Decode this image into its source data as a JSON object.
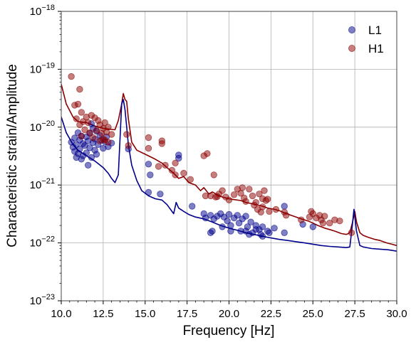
{
  "chart_data": {
    "type": "scatter",
    "xlabel": "Frequency [Hz]",
    "ylabel": "Characteristic strain/Amplitude",
    "xlim": [
      10.0,
      30.0
    ],
    "ylim": [
      1e-23,
      1e-18
    ],
    "yscale": "log",
    "grid": true,
    "legend_position": "top-right",
    "x_ticks": [
      10.0,
      12.5,
      15.0,
      17.5,
      20.0,
      22.5,
      25.0,
      27.5,
      30.0
    ],
    "x_tick_labels": [
      "10.0",
      "12.5",
      "15.0",
      "17.5",
      "20.0",
      "22.5",
      "25.0",
      "27.5",
      "30.0"
    ],
    "y_ticks": [
      1e-23,
      1e-22,
      1e-21,
      1e-20,
      1e-19,
      1e-18
    ],
    "y_tick_labels": [
      {
        "base": "10",
        "exp": "−23"
      },
      {
        "base": "10",
        "exp": "−22"
      },
      {
        "base": "10",
        "exp": "−21"
      },
      {
        "base": "10",
        "exp": "−20"
      },
      {
        "base": "10",
        "exp": "−19"
      },
      {
        "base": "10",
        "exp": "−18"
      }
    ],
    "series": [
      {
        "name": "L1",
        "kind": "points",
        "color": "#00008b",
        "points": [
          [
            10.6,
            5.5e-21
          ],
          [
            10.7,
            4.5e-21
          ],
          [
            10.8,
            3.8e-21
          ],
          [
            10.8,
            6.5e-21
          ],
          [
            10.9,
            3e-21
          ],
          [
            10.9,
            5e-21
          ],
          [
            11.0,
            8e-21
          ],
          [
            11.0,
            3.5e-21
          ],
          [
            11.1,
            4.2e-21
          ],
          [
            11.1,
            6e-21
          ],
          [
            11.2,
            2.8e-21
          ],
          [
            11.2,
            7e-21
          ],
          [
            11.3,
            5.2e-21
          ],
          [
            11.3,
            3.2e-21
          ],
          [
            11.4,
            4.8e-21
          ],
          [
            11.5,
            6.8e-21
          ],
          [
            11.5,
            3.6e-21
          ],
          [
            11.6,
            5.8e-21
          ],
          [
            11.6,
            2.2e-21
          ],
          [
            11.7,
            7.8e-21
          ],
          [
            11.7,
            4.4e-21
          ],
          [
            11.8,
            1.15e-20
          ],
          [
            11.8,
            3e-21
          ],
          [
            11.9,
            5.4e-21
          ],
          [
            11.9,
            9.5e-21
          ],
          [
            12.0,
            4e-21
          ],
          [
            12.0,
            6.2e-21
          ],
          [
            12.1,
            3.4e-21
          ],
          [
            12.1,
            8.5e-21
          ],
          [
            12.2,
            5e-21
          ],
          [
            12.3,
            7.2e-21
          ],
          [
            12.4,
            6e-21
          ],
          [
            12.5,
            4.3e-21
          ],
          [
            12.6,
            5.6e-21
          ],
          [
            12.7,
            6.8e-21
          ],
          [
            12.8,
            4.6e-21
          ],
          [
            13.0,
            5.3e-21
          ],
          [
            14.0,
            4.2e-21
          ],
          [
            15.2,
            2.3e-21
          ],
          [
            15.3,
            1.5e-21
          ],
          [
            15.2,
            7.5e-22
          ],
          [
            15.9,
            7e-22
          ],
          [
            17.0,
            3.3e-21
          ],
          [
            17.0,
            2.9e-21
          ],
          [
            17.8,
            4.3e-22
          ],
          [
            18.5,
            3.2e-22
          ],
          [
            18.6,
            2.7e-22
          ],
          [
            18.9,
            3e-22
          ],
          [
            19.1,
            2.6e-22
          ],
          [
            19.3,
            2.9e-22
          ],
          [
            19.5,
            3.2e-22
          ],
          [
            19.7,
            2.8e-22
          ],
          [
            19.9,
            2.4e-22
          ],
          [
            20.0,
            3.1e-22
          ],
          [
            20.1,
            2e-22
          ],
          [
            20.3,
            2.7e-22
          ],
          [
            20.5,
            3e-22
          ],
          [
            20.6,
            2.2e-22
          ],
          [
            20.8,
            2.6e-22
          ],
          [
            21.0,
            2.9e-22
          ],
          [
            21.1,
            1.9e-22
          ],
          [
            21.3,
            2.3e-22
          ],
          [
            21.4,
            1.5e-22
          ],
          [
            21.6,
            2e-22
          ],
          [
            21.8,
            1.7e-22
          ],
          [
            21.9,
            1.4e-22
          ],
          [
            22.0,
            1.9e-22
          ],
          [
            22.3,
            1.6e-22
          ],
          [
            22.7,
            1.8e-22
          ],
          [
            23.3,
            4.3e-22
          ],
          [
            23.3,
            1.5e-22
          ],
          [
            24.4,
            2.1e-22
          ],
          [
            25.0,
            1.9e-22
          ],
          [
            20.1,
            1.6e-22
          ],
          [
            21.0,
            1.6e-22
          ],
          [
            22.0,
            1.3e-22
          ],
          [
            22.4,
            1.5e-22
          ],
          [
            18.9,
            1.5e-22
          ],
          [
            21.2,
            1.4e-22
          ],
          [
            19.6,
            1.9e-22
          ],
          [
            20.7,
            1.6e-22
          ],
          [
            21.6,
            1.7e-22
          ],
          [
            19.0,
            1.6e-22
          ]
        ]
      },
      {
        "name": "H1",
        "kind": "points",
        "color": "#8b0000",
        "points": [
          [
            10.6,
            7.5e-20
          ],
          [
            11.1,
            4.5e-20
          ],
          [
            10.8,
            2.4e-20
          ],
          [
            11.0,
            2.5e-20
          ],
          [
            11.2,
            1.8e-20
          ],
          [
            10.9,
            1.4e-20
          ],
          [
            11.1,
            1.1e-20
          ],
          [
            11.3,
            1.25e-20
          ],
          [
            11.5,
            1.5e-20
          ],
          [
            11.6,
            1.2e-20
          ],
          [
            11.8,
            1.6e-20
          ],
          [
            12.0,
            1.45e-20
          ],
          [
            12.2,
            1.3e-20
          ],
          [
            12.3,
            1.1e-20
          ],
          [
            12.5,
            9.5e-21
          ],
          [
            12.6,
            1.2e-20
          ],
          [
            12.8,
            1e-20
          ],
          [
            11.4,
            9e-21
          ],
          [
            11.7,
            8e-21
          ],
          [
            12.1,
            8.8e-21
          ],
          [
            12.4,
            7.8e-21
          ],
          [
            12.7,
            8.2e-21
          ],
          [
            13.0,
            7.5e-21
          ],
          [
            12.5,
            6.2e-21
          ],
          [
            11.2,
            7e-21
          ],
          [
            11.9,
            6.6e-21
          ],
          [
            12.3,
            5.8e-21
          ],
          [
            12.6,
            6e-21
          ],
          [
            12.8,
            5.5e-21
          ],
          [
            14.0,
            4.8e-21
          ],
          [
            13.9,
            7.5e-21
          ],
          [
            15.2,
            6.6e-21
          ],
          [
            15.2,
            4.3e-21
          ],
          [
            16.0,
            5.8e-21
          ],
          [
            16.0,
            5.2e-21
          ],
          [
            15.8,
            2.1e-21
          ],
          [
            16.2,
            2.2e-21
          ],
          [
            16.6,
            1.8e-21
          ],
          [
            16.8,
            1.5e-21
          ],
          [
            16.8,
            2.4e-21
          ],
          [
            17.3,
            1.6e-21
          ],
          [
            17.7,
            1.25e-21
          ],
          [
            18.5,
            3.2e-21
          ],
          [
            18.7,
            3.5e-21
          ],
          [
            19.1,
            1.5e-21
          ],
          [
            18.6,
            6.5e-22
          ],
          [
            18.9,
            6.5e-22
          ],
          [
            19.2,
            6.2e-22
          ],
          [
            19.4,
            7e-22
          ],
          [
            19.6,
            8e-22
          ],
          [
            19.8,
            6.2e-22
          ],
          [
            20.0,
            5.5e-22
          ],
          [
            20.3,
            6.8e-22
          ],
          [
            20.5,
            8.5e-22
          ],
          [
            20.7,
            7.2e-22
          ],
          [
            20.9,
            6e-22
          ],
          [
            21.0,
            5.2e-22
          ],
          [
            21.2,
            8.5e-22
          ],
          [
            21.4,
            6.5e-22
          ],
          [
            21.6,
            5e-22
          ],
          [
            21.8,
            7e-22
          ],
          [
            22.0,
            5.8e-22
          ],
          [
            22.1,
            8e-22
          ],
          [
            22.2,
            5.4e-22
          ],
          [
            20.8,
            9e-22
          ],
          [
            21.5,
            4.5e-22
          ],
          [
            22.0,
            4.2e-22
          ],
          [
            21.7,
            3.8e-22
          ],
          [
            22.4,
            3.5e-22
          ],
          [
            22.8,
            3.8e-22
          ],
          [
            23.3,
            3.4e-22
          ],
          [
            23.4,
            3e-22
          ],
          [
            24.3,
            2.5e-22
          ],
          [
            24.8,
            2.8e-22
          ],
          [
            24.9,
            3.5e-22
          ],
          [
            25.0,
            3.2e-22
          ],
          [
            25.2,
            2.7e-22
          ],
          [
            25.4,
            3e-22
          ],
          [
            25.5,
            2.5e-22
          ],
          [
            25.7,
            2.9e-22
          ],
          [
            26.0,
            2.2e-22
          ],
          [
            26.3,
            2.5e-22
          ],
          [
            26.6,
            2.4e-22
          ],
          [
            27.3,
            1.5e-22
          ],
          [
            19.3,
            6.3e-22
          ],
          [
            22.3,
            5.7e-22
          ],
          [
            21.9,
            3.4e-22
          ],
          [
            25.6,
            2.2e-22
          ]
        ]
      },
      {
        "name": "",
        "kind": "curve",
        "color": "#8b0000",
        "points": [
          [
            10.0,
            5.5e-20
          ],
          [
            10.3,
            2.5e-20
          ],
          [
            10.7,
            1.5e-20
          ],
          [
            11.0,
            1.25e-20
          ],
          [
            11.5,
            1.2e-20
          ],
          [
            12.0,
            1.05e-20
          ],
          [
            12.5,
            9.5e-21
          ],
          [
            12.9,
            9.2e-21
          ],
          [
            13.2,
            9e-21
          ],
          [
            13.4,
            1.3e-20
          ],
          [
            13.6,
            2.5e-20
          ],
          [
            13.7,
            3.8e-20
          ],
          [
            13.8,
            3e-20
          ],
          [
            13.9,
            2.8e-20
          ],
          [
            14.0,
            1.4e-20
          ],
          [
            14.2,
            5.5e-21
          ],
          [
            14.5,
            4e-21
          ],
          [
            15.0,
            3.4e-21
          ],
          [
            15.5,
            2.9e-21
          ],
          [
            16.0,
            2.4e-21
          ],
          [
            16.3,
            2e-21
          ],
          [
            16.7,
            1.6e-21
          ],
          [
            17.0,
            1.3e-21
          ],
          [
            17.3,
            1.4e-21
          ],
          [
            17.6,
            1.1e-21
          ],
          [
            18.0,
            1e-21
          ],
          [
            18.3,
            8e-22
          ],
          [
            18.5,
            9e-22
          ],
          [
            18.8,
            7e-22
          ],
          [
            19.0,
            7.6e-22
          ],
          [
            19.3,
            6.8e-22
          ],
          [
            19.6,
            6.2e-22
          ],
          [
            20.0,
            5.8e-22
          ],
          [
            20.3,
            5.6e-22
          ],
          [
            20.7,
            5.4e-22
          ],
          [
            21.0,
            5e-22
          ],
          [
            21.3,
            4.8e-22
          ],
          [
            21.7,
            4.5e-22
          ],
          [
            22.0,
            4.3e-22
          ],
          [
            22.3,
            4e-22
          ],
          [
            22.7,
            3.8e-22
          ],
          [
            23.0,
            3.6e-22
          ],
          [
            23.3,
            3.3e-22
          ],
          [
            23.7,
            3e-22
          ],
          [
            24.0,
            2.8e-22
          ],
          [
            24.3,
            2.6e-22
          ],
          [
            24.7,
            2.4e-22
          ],
          [
            25.0,
            2.2e-22
          ],
          [
            25.3,
            2e-22
          ],
          [
            25.7,
            1.8e-22
          ],
          [
            26.0,
            1.7e-22
          ],
          [
            26.3,
            1.6e-22
          ],
          [
            26.7,
            1.45e-22
          ],
          [
            27.0,
            1.4e-22
          ],
          [
            27.2,
            1.5e-22
          ],
          [
            27.35,
            2.2e-22
          ],
          [
            27.5,
            3.5e-22
          ],
          [
            27.6,
            2.3e-22
          ],
          [
            27.8,
            1.5e-22
          ],
          [
            28.0,
            1.35e-22
          ],
          [
            28.3,
            1.25e-22
          ],
          [
            28.7,
            1.15e-22
          ],
          [
            29.0,
            1.1e-22
          ],
          [
            29.4,
            1e-22
          ],
          [
            29.7,
            9.5e-23
          ],
          [
            30.0,
            9e-23
          ]
        ]
      },
      {
        "name": "",
        "kind": "curve",
        "color": "#00008b",
        "points": [
          [
            10.0,
            1.5e-20
          ],
          [
            10.3,
            8e-21
          ],
          [
            10.7,
            5e-21
          ],
          [
            11.0,
            4e-21
          ],
          [
            11.5,
            3.2e-21
          ],
          [
            12.0,
            2.6e-21
          ],
          [
            12.5,
            2e-21
          ],
          [
            12.8,
            1.6e-21
          ],
          [
            13.0,
            1.3e-21
          ],
          [
            13.2,
            1.1e-21
          ],
          [
            13.4,
            1.5e-21
          ],
          [
            13.6,
            2.5e-20
          ],
          [
            13.7,
            3e-20
          ],
          [
            13.8,
            2e-20
          ],
          [
            14.0,
            5e-21
          ],
          [
            14.2,
            2.2e-21
          ],
          [
            14.5,
            1.2e-21
          ],
          [
            14.8,
            8e-22
          ],
          [
            15.2,
            6.5e-22
          ],
          [
            15.6,
            5.8e-22
          ],
          [
            16.0,
            5.5e-22
          ],
          [
            16.3,
            4.6e-22
          ],
          [
            16.7,
            3.2e-22
          ],
          [
            16.85,
            5e-22
          ],
          [
            17.0,
            4e-22
          ],
          [
            17.3,
            3.5e-22
          ],
          [
            17.6,
            3.1e-22
          ],
          [
            18.0,
            2.8e-22
          ],
          [
            18.5,
            2.6e-22
          ],
          [
            19.0,
            2.3e-22
          ],
          [
            19.5,
            2e-22
          ],
          [
            20.0,
            1.8e-22
          ],
          [
            20.5,
            1.65e-22
          ],
          [
            21.0,
            1.5e-22
          ],
          [
            21.5,
            1.4e-22
          ],
          [
            22.0,
            1.3e-22
          ],
          [
            22.5,
            1.22e-22
          ],
          [
            23.0,
            1.15e-22
          ],
          [
            23.5,
            1.1e-22
          ],
          [
            24.0,
            1.05e-22
          ],
          [
            24.5,
            1e-22
          ],
          [
            25.0,
            9.5e-23
          ],
          [
            25.5,
            9e-23
          ],
          [
            26.0,
            8.7e-23
          ],
          [
            26.5,
            8.5e-23
          ],
          [
            27.0,
            8.3e-23
          ],
          [
            27.2,
            8.5e-23
          ],
          [
            27.35,
            2e-22
          ],
          [
            27.45,
            3.8e-22
          ],
          [
            27.6,
            1.6e-22
          ],
          [
            27.8,
            9e-23
          ],
          [
            28.0,
            8.5e-23
          ],
          [
            28.5,
            8e-23
          ],
          [
            29.0,
            7.8e-23
          ],
          [
            29.5,
            7.6e-23
          ],
          [
            30.0,
            7.2e-23
          ]
        ]
      }
    ]
  }
}
